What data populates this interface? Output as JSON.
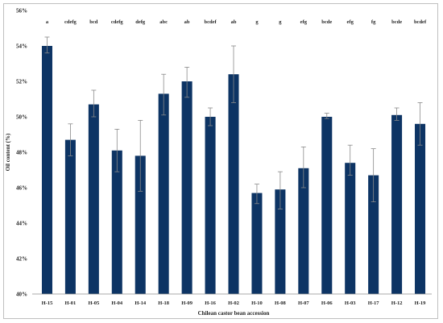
{
  "chart_data": {
    "type": "bar",
    "title": "",
    "xlabel": "Chilean castor bean accession",
    "ylabel": "Oil content (%)",
    "ylim": [
      40,
      56
    ],
    "yticks": [
      "40%",
      "42%",
      "44%",
      "46%",
      "48%",
      "50%",
      "52%",
      "54%",
      "56%"
    ],
    "grid": false,
    "bar_color": "#0d3464",
    "categories": [
      "H-15",
      "H-01",
      "H-05",
      "H-04",
      "H-14",
      "H-18",
      "H-09",
      "H-16",
      "H-02",
      "H-10",
      "H-08",
      "H-07",
      "H-06",
      "H-03",
      "H-17",
      "H-12",
      "H-19"
    ],
    "values": [
      54.0,
      48.7,
      50.7,
      48.1,
      47.8,
      51.3,
      52.0,
      50.0,
      52.4,
      45.7,
      45.9,
      47.1,
      50.0,
      47.4,
      46.7,
      50.1,
      49.6
    ],
    "error_low": [
      53.6,
      47.8,
      50.0,
      46.9,
      45.8,
      50.1,
      51.1,
      49.5,
      50.8,
      45.1,
      44.8,
      46.0,
      49.9,
      46.7,
      45.2,
      49.8,
      48.4
    ],
    "error_high": [
      54.5,
      49.6,
      51.5,
      49.3,
      49.8,
      52.4,
      52.8,
      50.5,
      54.0,
      46.2,
      46.9,
      48.3,
      50.2,
      48.4,
      48.2,
      50.5,
      50.8
    ],
    "significance_letters": [
      "a",
      "cdefg",
      "bcd",
      "cdefg",
      "defg",
      "abc",
      "ab",
      "bcdef",
      "ab",
      "g",
      "g",
      "efg",
      "bcde",
      "efg",
      "fg",
      "bcde",
      "bcdef"
    ]
  }
}
